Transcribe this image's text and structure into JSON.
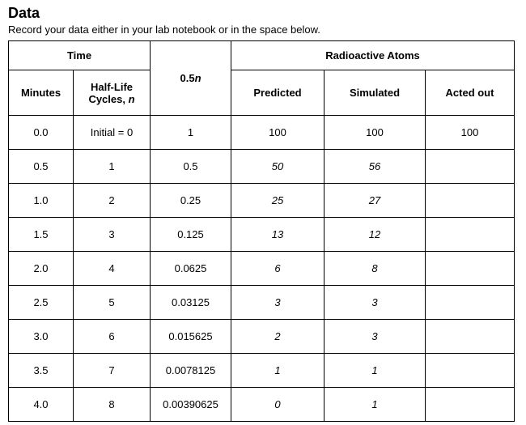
{
  "header": {
    "title": "Data",
    "subtitle": "Record your data either in your lab notebook or in the space below."
  },
  "table": {
    "group_headers": {
      "time": "Time",
      "exponent_pre": "0.5",
      "exponent_italic": "n",
      "radioactive": "Radioactive Atoms"
    },
    "sub_headers": {
      "minutes": "Minutes",
      "cycles_line1": "Half-Life",
      "cycles_line2_pre": "Cycles, ",
      "cycles_line2_italic": "n",
      "predicted": "Predicted",
      "simulated": "Simulated",
      "acted_out": "Acted out"
    },
    "rows": [
      {
        "minutes": "0.0",
        "cycles": "Initial = 0",
        "exp": "1",
        "predicted": "100",
        "simulated": "100",
        "acted_out": "100"
      },
      {
        "minutes": "0.5",
        "cycles": "1",
        "exp": "0.5",
        "predicted": "50",
        "simulated": "56",
        "acted_out": ""
      },
      {
        "minutes": "1.0",
        "cycles": "2",
        "exp": "0.25",
        "predicted": "25",
        "simulated": "27",
        "acted_out": ""
      },
      {
        "minutes": "1.5",
        "cycles": "3",
        "exp": "0.125",
        "predicted": "13",
        "simulated": "12",
        "acted_out": ""
      },
      {
        "minutes": "2.0",
        "cycles": "4",
        "exp": "0.0625",
        "predicted": "6",
        "simulated": "8",
        "acted_out": ""
      },
      {
        "minutes": "2.5",
        "cycles": "5",
        "exp": "0.03125",
        "predicted": "3",
        "simulated": "3",
        "acted_out": ""
      },
      {
        "minutes": "3.0",
        "cycles": "6",
        "exp": "0.015625",
        "predicted": "2",
        "simulated": "3",
        "acted_out": ""
      },
      {
        "minutes": "3.5",
        "cycles": "7",
        "exp": "0.0078125",
        "predicted": "1",
        "simulated": "1",
        "acted_out": ""
      },
      {
        "minutes": "4.0",
        "cycles": "8",
        "exp": "0.00390625",
        "predicted": "0",
        "simulated": "1",
        "acted_out": ""
      }
    ]
  }
}
